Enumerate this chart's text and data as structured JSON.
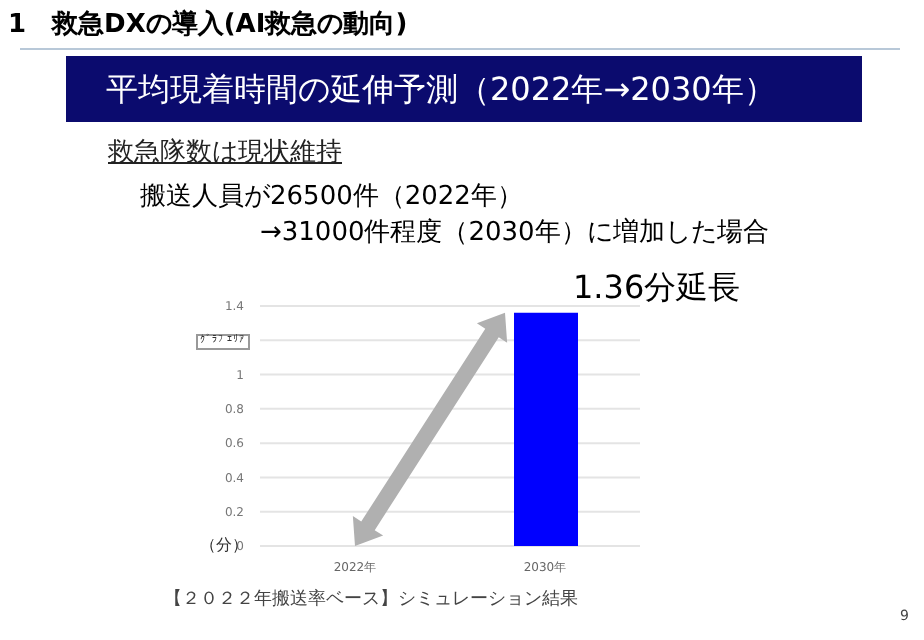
{
  "chart_data": {
    "type": "bar",
    "title": "平均現着時間の延伸予測（2022年→2030年）",
    "subtitle": "救急隊数は現状維持",
    "ylabel": "（分）",
    "categories": [
      "2022年",
      "2030年"
    ],
    "values": [
      0,
      1.36
    ],
    "color": "#0000ff",
    "ylim": [
      0,
      1.4
    ],
    "yticks": [
      0,
      0.2,
      0.4,
      0.6,
      0.8,
      1.0,
      {
        "value": 1.2,
        "label": null
      },
      1.4
    ],
    "grid": "y",
    "annotations": [
      "1　救急DXの導入(AI救急の動向)",
      "搬送人員が26500件（2022年）",
      "→31000件程度（2030年）に増加した場合",
      "ｸﾞﾗﾌ ｴﾘｱ",
      {
        "text": "1.36分延長",
        "x": "2030年",
        "y": 1.36
      },
      "【２０２２年搬送率ベース】シミュレーション結果",
      "9"
    ]
  }
}
